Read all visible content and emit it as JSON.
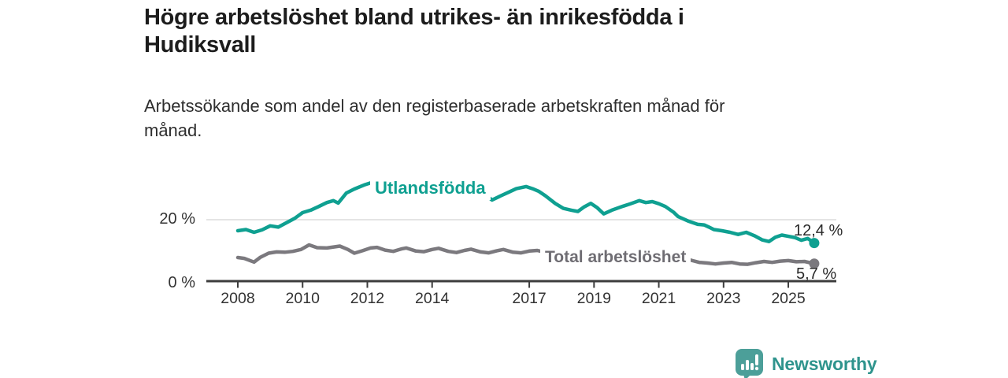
{
  "title": {
    "line1": "Högre arbetslöshet bland utrikes- än inrikesfödda i",
    "line2": "Hudiksvall"
  },
  "subtitle": {
    "line1": "Arbetssökande som andel av den registerbaserade arbetskraften månad för",
    "line2": "månad."
  },
  "colors": {
    "teal": "#0fa091",
    "gray": "#7b797e",
    "grid": "#dbdbdb",
    "axis": "#3d3d3d",
    "title_text": "#1c1c1c",
    "tick_text": "#333333",
    "brand_teal": "#2f948d",
    "brand_icon": "#4c9f99"
  },
  "y_axis": {
    "tick_labels": [
      "20 %",
      "0 %"
    ],
    "tick_values": [
      20,
      0
    ]
  },
  "x_axis": {
    "ticks": [
      "2008",
      "2010",
      "2012",
      "2014",
      "2017",
      "2019",
      "2021",
      "2023",
      "2025"
    ]
  },
  "footer": {
    "brand": "Newsworthy"
  },
  "chart_data": {
    "type": "line",
    "title": "Högre arbetslöshet bland utrikes- än inrikesfödda i Hudiksvall",
    "subtitle": "Arbetssökande som andel av den registerbaserade arbetskraften månad för månad.",
    "unit": "%",
    "xlim": [
      2008,
      2025.8
    ],
    "ylim": [
      0,
      34
    ],
    "x_tick_years": [
      2008,
      2010,
      2012,
      2014,
      2017,
      2019,
      2021,
      2023,
      2025
    ],
    "y_ticks": [
      0,
      20
    ],
    "gridline_at": 20,
    "legend_position": "inline-labels",
    "series": [
      {
        "name": "Utlandsfödda",
        "color": "#0fa091",
        "end_label": "12,4 %",
        "end_value": 12.4,
        "points": [
          [
            2008.0,
            16.4
          ],
          [
            2008.25,
            16.8
          ],
          [
            2008.5,
            15.9
          ],
          [
            2008.75,
            16.7
          ],
          [
            2009.0,
            18.0
          ],
          [
            2009.25,
            17.6
          ],
          [
            2009.5,
            19.0
          ],
          [
            2009.75,
            20.4
          ],
          [
            2010.0,
            22.3
          ],
          [
            2010.25,
            23.1
          ],
          [
            2010.5,
            24.3
          ],
          [
            2010.75,
            25.6
          ],
          [
            2010.95,
            26.2
          ],
          [
            2011.1,
            25.4
          ],
          [
            2011.35,
            28.7
          ],
          [
            2011.6,
            30.0
          ],
          [
            2011.9,
            31.3
          ],
          [
            2012.1,
            32.0
          ],
          [
            2012.35,
            31.6
          ],
          [
            2012.6,
            32.2
          ],
          [
            2012.9,
            31.7
          ],
          [
            2013.2,
            32.0
          ],
          [
            2013.5,
            31.4
          ],
          [
            2013.8,
            31.7
          ],
          [
            2014.1,
            30.9
          ],
          [
            2014.4,
            30.3
          ],
          [
            2014.7,
            29.6
          ],
          [
            2015.0,
            29.0
          ],
          [
            2015.25,
            28.4
          ],
          [
            2015.5,
            27.9
          ],
          [
            2015.7,
            27.7
          ],
          [
            2015.85,
            26.4
          ],
          [
            2016.1,
            27.7
          ],
          [
            2016.35,
            28.9
          ],
          [
            2016.6,
            30.1
          ],
          [
            2016.9,
            30.8
          ],
          [
            2017.1,
            30.1
          ],
          [
            2017.3,
            29.2
          ],
          [
            2017.5,
            27.8
          ],
          [
            2017.8,
            25.3
          ],
          [
            2018.05,
            23.7
          ],
          [
            2018.3,
            23.1
          ],
          [
            2018.5,
            22.7
          ],
          [
            2018.7,
            24.2
          ],
          [
            2018.9,
            25.3
          ],
          [
            2019.1,
            23.9
          ],
          [
            2019.3,
            21.9
          ],
          [
            2019.55,
            23.1
          ],
          [
            2019.9,
            24.4
          ],
          [
            2020.1,
            25.1
          ],
          [
            2020.4,
            26.2
          ],
          [
            2020.6,
            25.6
          ],
          [
            2020.8,
            25.9
          ],
          [
            2021.0,
            25.2
          ],
          [
            2021.2,
            24.3
          ],
          [
            2021.45,
            22.5
          ],
          [
            2021.6,
            21.0
          ],
          [
            2021.9,
            19.6
          ],
          [
            2022.2,
            18.5
          ],
          [
            2022.4,
            18.3
          ],
          [
            2022.55,
            17.6
          ],
          [
            2022.7,
            16.8
          ],
          [
            2022.95,
            16.4
          ],
          [
            2023.2,
            15.9
          ],
          [
            2023.45,
            15.2
          ],
          [
            2023.7,
            15.9
          ],
          [
            2023.95,
            14.8
          ],
          [
            2024.2,
            13.4
          ],
          [
            2024.4,
            12.9
          ],
          [
            2024.6,
            14.3
          ],
          [
            2024.8,
            15.0
          ],
          [
            2025.0,
            14.6
          ],
          [
            2025.2,
            14.2
          ],
          [
            2025.4,
            13.3
          ],
          [
            2025.6,
            13.9
          ],
          [
            2025.8,
            12.4
          ]
        ]
      },
      {
        "name": "Total arbetslöshet",
        "color": "#7b797e",
        "end_label": "5,7 %",
        "end_value": 5.7,
        "points": [
          [
            2008.0,
            7.7
          ],
          [
            2008.2,
            7.4
          ],
          [
            2008.5,
            6.2
          ],
          [
            2008.7,
            7.8
          ],
          [
            2008.95,
            9.1
          ],
          [
            2009.2,
            9.5
          ],
          [
            2009.45,
            9.4
          ],
          [
            2009.7,
            9.7
          ],
          [
            2009.95,
            10.3
          ],
          [
            2010.2,
            11.8
          ],
          [
            2010.45,
            10.9
          ],
          [
            2010.75,
            10.8
          ],
          [
            2011.15,
            11.4
          ],
          [
            2011.4,
            10.3
          ],
          [
            2011.6,
            9.1
          ],
          [
            2011.85,
            9.9
          ],
          [
            2012.1,
            10.8
          ],
          [
            2012.3,
            11.0
          ],
          [
            2012.55,
            10.1
          ],
          [
            2012.8,
            9.7
          ],
          [
            2013.05,
            10.5
          ],
          [
            2013.2,
            10.8
          ],
          [
            2013.5,
            9.8
          ],
          [
            2013.75,
            9.6
          ],
          [
            2014.0,
            10.3
          ],
          [
            2014.2,
            10.7
          ],
          [
            2014.5,
            9.7
          ],
          [
            2014.75,
            9.3
          ],
          [
            2015.0,
            10.0
          ],
          [
            2015.2,
            10.4
          ],
          [
            2015.5,
            9.5
          ],
          [
            2015.75,
            9.2
          ],
          [
            2016.0,
            9.9
          ],
          [
            2016.2,
            10.3
          ],
          [
            2016.5,
            9.4
          ],
          [
            2016.75,
            9.2
          ],
          [
            2017.0,
            9.8
          ],
          [
            2017.25,
            10.0
          ],
          [
            2017.5,
            9.3
          ],
          [
            2017.75,
            9.0
          ],
          [
            2018.0,
            9.4
          ],
          [
            2018.25,
            9.5
          ],
          [
            2018.5,
            8.7
          ],
          [
            2018.75,
            8.4
          ],
          [
            2019.0,
            8.8
          ],
          [
            2019.25,
            8.9
          ],
          [
            2019.5,
            8.3
          ],
          [
            2019.75,
            8.4
          ],
          [
            2020.0,
            8.9
          ],
          [
            2020.25,
            9.7
          ],
          [
            2020.5,
            9.9
          ],
          [
            2020.75,
            9.5
          ],
          [
            2021.0,
            9.2
          ],
          [
            2021.25,
            8.9
          ],
          [
            2021.5,
            8.1
          ],
          [
            2021.75,
            7.4
          ],
          [
            2022.0,
            6.8
          ],
          [
            2022.25,
            6.1
          ],
          [
            2022.5,
            5.9
          ],
          [
            2022.75,
            5.6
          ],
          [
            2023.0,
            5.9
          ],
          [
            2023.25,
            6.1
          ],
          [
            2023.5,
            5.6
          ],
          [
            2023.75,
            5.5
          ],
          [
            2024.0,
            6.0
          ],
          [
            2024.25,
            6.4
          ],
          [
            2024.5,
            6.1
          ],
          [
            2024.75,
            6.5
          ],
          [
            2025.0,
            6.7
          ],
          [
            2025.25,
            6.3
          ],
          [
            2025.5,
            6.4
          ],
          [
            2025.8,
            5.7
          ]
        ]
      }
    ]
  }
}
